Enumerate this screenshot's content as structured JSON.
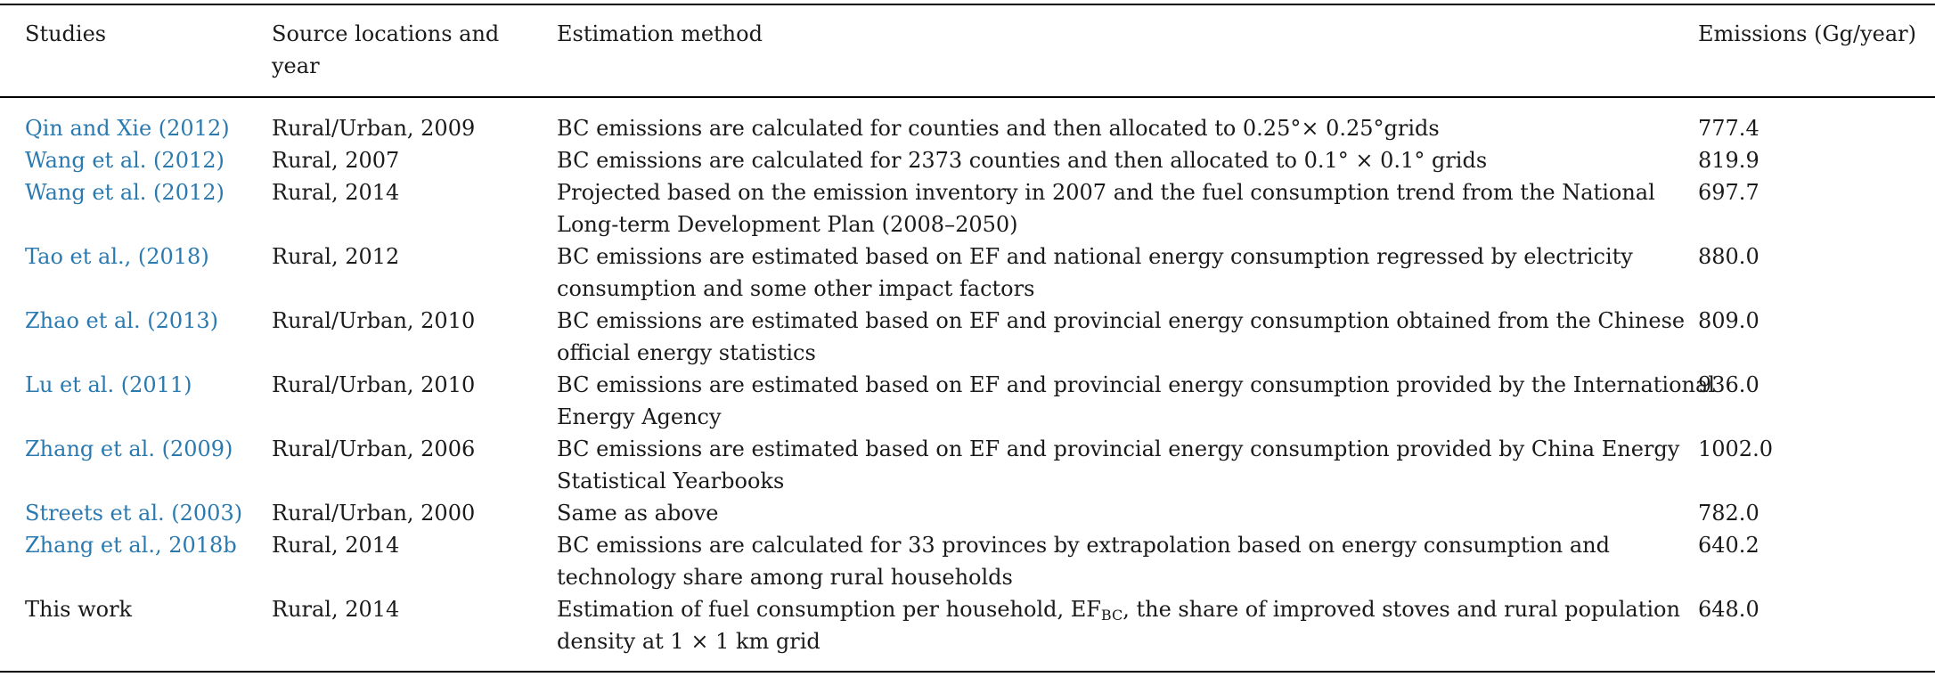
{
  "header": {
    "studies": "Studies",
    "source_line1": "Source locations and",
    "source_line2": "year",
    "method": "Estimation method",
    "emissions": "Emissions (Gg/year)"
  },
  "rows": [
    {
      "study": "Qin and Xie (2012)",
      "source": "Rural/Urban, 2009",
      "method_l1": "BC emissions are calculated for counties and then allocated to 0.25°× 0.25°grids",
      "method_l2": "",
      "emissions": "777.4"
    },
    {
      "study": "Wang et al. (2012)",
      "source": "Rural, 2007",
      "method_l1": "BC emissions are calculated for 2373 counties and then allocated to 0.1° × 0.1° grids",
      "method_l2": "",
      "emissions": "819.9"
    },
    {
      "study": "Wang et al. (2012)",
      "source": "Rural, 2014",
      "method_l1": "Projected based on the emission inventory in 2007 and the fuel consumption trend from the National",
      "method_l2": "Long-term Development Plan (2008–2050)",
      "emissions": "697.7"
    },
    {
      "study": "Tao et al., (2018)",
      "source": "Rural, 2012",
      "method_l1": "BC emissions are estimated based on EF and national energy consumption regressed by electricity",
      "method_l2": "consumption and some other impact factors",
      "emissions": "880.0"
    },
    {
      "study": "Zhao et al. (2013)",
      "source": "Rural/Urban, 2010",
      "method_l1": "BC emissions are estimated based on EF and provincial energy consumption obtained from the Chinese",
      "method_l2": "official energy statistics",
      "emissions": "809.0"
    },
    {
      "study": "Lu et al. (2011)",
      "source": "Rural/Urban, 2010",
      "method_l1": "BC emissions are estimated based on EF and provincial energy consumption provided by the International",
      "method_l2": "Energy Agency",
      "emissions": "936.0"
    },
    {
      "study": "Zhang et al. (2009)",
      "source": "Rural/Urban, 2006",
      "method_l1": "BC emissions are estimated based on EF and provincial energy consumption provided by China Energy",
      "method_l2": "Statistical Yearbooks",
      "emissions": "1002.0"
    },
    {
      "study": "Streets et al. (2003)",
      "source": "Rural/Urban, 2000",
      "method_l1": "Same as above",
      "method_l2": "",
      "emissions": "782.0"
    },
    {
      "study": "Zhang et al., 2018b",
      "source": "Rural, 2014",
      "method_l1": "BC emissions are calculated for 33 provinces by extrapolation based on energy consumption and",
      "method_l2": "technology share among rural households",
      "emissions": "640.2"
    },
    {
      "study": "This work",
      "source": "Rural, 2014",
      "method_l1_pre": "Estimation of fuel consumption per household, EF",
      "method_l1_sub": "BC",
      "method_l1_post": ", the share of improved stoves and rural population",
      "method_l2": "density at 1 × 1 km grid",
      "emissions": "648.0"
    }
  ]
}
